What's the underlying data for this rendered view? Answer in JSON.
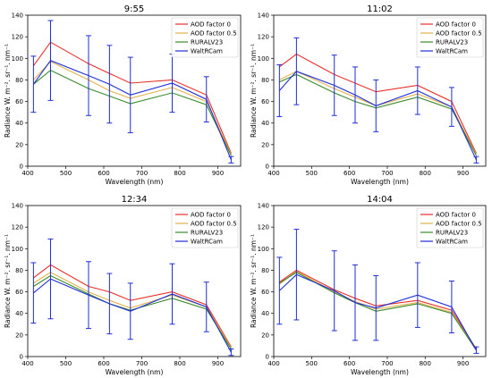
{
  "chart_data": [
    {
      "type": "line",
      "title": "9:55",
      "xlabel": "Wavelength (nm)",
      "ylabel": "Radiance W. m⁻². sr⁻¹. nm⁻¹",
      "xlim": [
        400,
        960
      ],
      "ylim": [
        0,
        140
      ],
      "xticks": [
        400,
        500,
        600,
        700,
        800,
        900
      ],
      "yticks": [
        0,
        20,
        40,
        60,
        80,
        100,
        120,
        140
      ],
      "legend": "top-right",
      "x": [
        415,
        460,
        560,
        615,
        670,
        780,
        870,
        935
      ],
      "series": [
        {
          "name": "AOD factor 0",
          "color": "#e8302a",
          "values": [
            93,
            115,
            95,
            86,
            77,
            80,
            66,
            12
          ]
        },
        {
          "name": "AOD factor 0.5",
          "color": "#e3b14e",
          "values": [
            80,
            97,
            80,
            70,
            63,
            73,
            60,
            11
          ]
        },
        {
          "name": "RURALV23",
          "color": "#3a8a2a",
          "values": [
            76,
            89,
            72,
            65,
            58,
            68,
            57,
            10
          ]
        },
        {
          "name": "WaltRCam",
          "color": "#1f2fd6",
          "values": [
            76,
            98,
            84,
            76,
            66,
            77,
            62,
            6
          ],
          "err": [
            26,
            37,
            37,
            36,
            35,
            27,
            21,
            3
          ]
        }
      ]
    },
    {
      "type": "line",
      "title": "11:02",
      "xlabel": "Wavelength (nm)",
      "ylabel": "Radiance W. m⁻². sr⁻¹. nm⁻¹",
      "xlim": [
        400,
        960
      ],
      "ylim": [
        0,
        140
      ],
      "xticks": [
        400,
        500,
        600,
        700,
        800,
        900
      ],
      "yticks": [
        0,
        20,
        40,
        60,
        80,
        100,
        120,
        140
      ],
      "legend": "top-right",
      "x": [
        415,
        460,
        560,
        615,
        670,
        780,
        870,
        935
      ],
      "series": [
        {
          "name": "AOD factor 0",
          "color": "#e8302a",
          "values": [
            92,
            104,
            85,
            77,
            69,
            75,
            60,
            12
          ]
        },
        {
          "name": "AOD factor 0.5",
          "color": "#e3b14e",
          "values": [
            80,
            88,
            72,
            64,
            56,
            67,
            55,
            11
          ]
        },
        {
          "name": "RURALV23",
          "color": "#3a8a2a",
          "values": [
            78,
            85,
            68,
            60,
            54,
            64,
            53,
            10
          ]
        },
        {
          "name": "WaltRCam",
          "color": "#1f2fd6",
          "values": [
            70,
            88,
            75,
            66,
            56,
            70,
            55,
            6
          ],
          "err": [
            24,
            31,
            28,
            26,
            24,
            22,
            18,
            3
          ]
        }
      ]
    },
    {
      "type": "line",
      "title": "12:34",
      "xlabel": "Wavelength (nm)",
      "ylabel": "Radiance W. m⁻². sr⁻¹. nm⁻¹",
      "xlim": [
        400,
        960
      ],
      "ylim": [
        0,
        140
      ],
      "xticks": [
        400,
        500,
        600,
        700,
        800,
        900
      ],
      "yticks": [
        0,
        20,
        40,
        60,
        80,
        100,
        120,
        140
      ],
      "legend": "top-right",
      "x": [
        415,
        460,
        560,
        615,
        670,
        780,
        870,
        935
      ],
      "series": [
        {
          "name": "AOD factor 0",
          "color": "#e8302a",
          "values": [
            73,
            85,
            65,
            60,
            52,
            60,
            48,
            9
          ]
        },
        {
          "name": "AOD factor 0.5",
          "color": "#e3b14e",
          "values": [
            68,
            78,
            60,
            52,
            45,
            57,
            46,
            8
          ]
        },
        {
          "name": "RURALV23",
          "color": "#3a8a2a",
          "values": [
            65,
            75,
            58,
            49,
            43,
            54,
            44,
            7
          ]
        },
        {
          "name": "WaltRCam",
          "color": "#1f2fd6",
          "values": [
            59,
            72,
            57,
            49,
            42,
            58,
            46,
            4
          ],
          "err": [
            28,
            37,
            31,
            28,
            26,
            28,
            23,
            3
          ]
        }
      ]
    },
    {
      "type": "line",
      "title": "14:04",
      "xlabel": "Wavelength (nm)",
      "ylabel": "Radiance W. m⁻². sr⁻¹. nm⁻¹",
      "xlim": [
        400,
        960
      ],
      "ylim": [
        0,
        140
      ],
      "xticks": [
        400,
        500,
        600,
        700,
        800,
        900
      ],
      "yticks": [
        0,
        20,
        40,
        60,
        80,
        100,
        120,
        140
      ],
      "legend": "top-right",
      "x": [
        415,
        460,
        560,
        615,
        670,
        780,
        870,
        935
      ],
      "series": [
        {
          "name": "AOD factor 0",
          "color": "#e8302a",
          "values": [
            69,
            80,
            62,
            54,
            47,
            52,
            43,
            7
          ]
        },
        {
          "name": "AOD factor 0.5",
          "color": "#e3b14e",
          "values": [
            67,
            79,
            60,
            51,
            44,
            50,
            41,
            6
          ]
        },
        {
          "name": "RURALV23",
          "color": "#3a8a2a",
          "values": [
            68,
            78,
            59,
            50,
            42,
            49,
            40,
            6
          ]
        },
        {
          "name": "WaltRCam",
          "color": "#1f2fd6",
          "values": [
            61,
            76,
            61,
            50,
            45,
            57,
            46,
            6
          ],
          "err": [
            31,
            42,
            37,
            35,
            30,
            30,
            24,
            3
          ]
        }
      ]
    }
  ]
}
